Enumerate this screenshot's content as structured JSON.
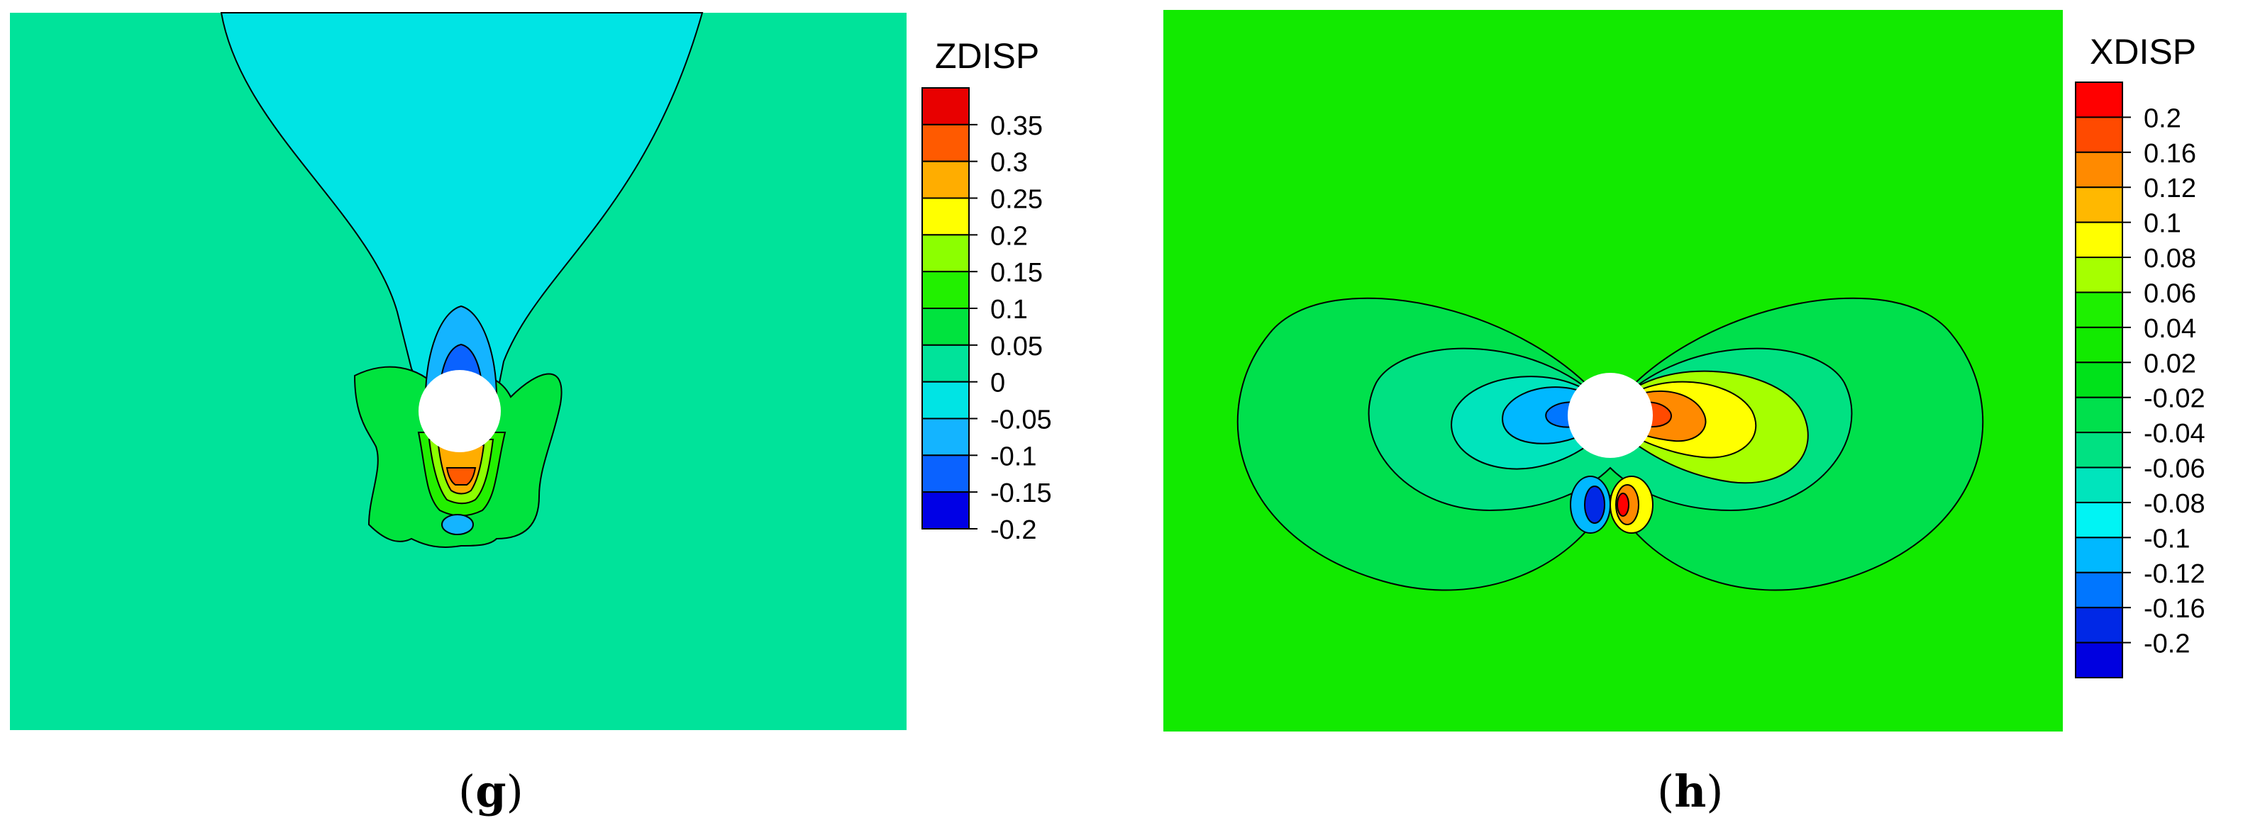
{
  "chart_data": [
    {
      "type": "heatmap",
      "panel_label": "g",
      "colorbar_title": "ZDISP",
      "colorbar_ticks": [
        "0.35",
        "0.3",
        "0.25",
        "0.2",
        "0.15",
        "0.1",
        "0.05",
        "0",
        "-0.05",
        "-0.1",
        "-0.15",
        "-0.2"
      ],
      "colorbar_colors": [
        "#e80000",
        "#ff5a00",
        "#ffad00",
        "#ffff00",
        "#8cff00",
        "#22f000",
        "#00e33e",
        "#00e39a",
        "#00e4e4",
        "#14b4ff",
        "#0a62ff",
        "#0000e6"
      ],
      "field": {
        "background_value": "0",
        "plume_above_hole_value": "-0.05",
        "max_below_hole": "0.35",
        "min_above_hole": "-0.2"
      }
    },
    {
      "type": "heatmap",
      "panel_label": "h",
      "colorbar_title": "XDISP",
      "colorbar_ticks": [
        "0.2",
        "0.16",
        "0.12",
        "0.1",
        "0.08",
        "0.06",
        "0.04",
        "0.02",
        "-0.02",
        "-0.04",
        "-0.06",
        "-0.08",
        "-0.1",
        "-0.12",
        "-0.16",
        "-0.2"
      ],
      "colorbar_colors": [
        "#ff0000",
        "#ff4a00",
        "#ff8a00",
        "#ffb800",
        "#ffff00",
        "#a6ff00",
        "#1ef000",
        "#12ea00",
        "#00e21a",
        "#00e04c",
        "#00e182",
        "#00e4bc",
        "#00f4f4",
        "#00b8ff",
        "#0076ff",
        "#0028e6",
        "#0000e0"
      ],
      "field": {
        "background_value": "0",
        "max_right_of_hole": "0.2",
        "min_left_of_hole": "-0.2"
      }
    }
  ]
}
